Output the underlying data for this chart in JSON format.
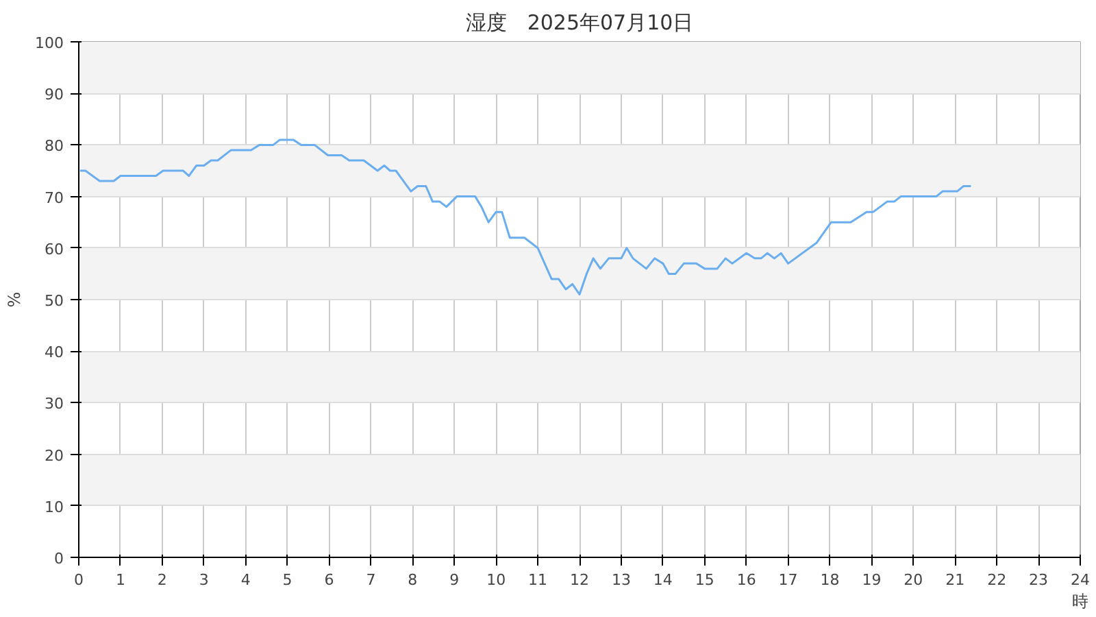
{
  "chart_data": {
    "type": "line",
    "title": "湿度　2025年07月10日",
    "xlabel": "時",
    "ylabel": "%",
    "xlim": [
      0,
      24
    ],
    "ylim": [
      0,
      100
    ],
    "xticks": [
      0,
      1,
      2,
      3,
      4,
      5,
      6,
      7,
      8,
      9,
      10,
      11,
      12,
      13,
      14,
      15,
      16,
      17,
      18,
      19,
      20,
      21,
      22,
      23,
      24
    ],
    "yticks": [
      0,
      10,
      20,
      30,
      40,
      50,
      60,
      70,
      80,
      90,
      100
    ],
    "grid": true,
    "marker": "none",
    "line_style": "solid",
    "series": [
      {
        "color": "#6aaef0",
        "x": [
          0.03,
          0.16,
          0.5,
          0.84,
          1.0,
          1.85,
          2.02,
          2.5,
          2.64,
          2.82,
          3.0,
          3.17,
          3.33,
          3.65,
          4.13,
          4.33,
          4.66,
          4.82,
          5.14,
          5.33,
          5.65,
          5.97,
          6.3,
          6.48,
          6.83,
          7.16,
          7.32,
          7.46,
          7.6,
          7.96,
          8.12,
          8.32,
          8.48,
          8.65,
          8.81,
          9.06,
          9.5,
          9.65,
          9.82,
          10.0,
          10.14,
          10.33,
          10.68,
          11.0,
          11.33,
          11.5,
          11.67,
          11.83,
          12.0,
          12.17,
          12.33,
          12.5,
          12.7,
          13.0,
          13.13,
          13.28,
          13.6,
          13.8,
          14.0,
          14.14,
          14.3,
          14.5,
          14.8,
          15.0,
          15.3,
          15.5,
          15.66,
          16.0,
          16.2,
          16.35,
          16.5,
          16.67,
          16.83,
          17.0,
          17.68,
          18.03,
          18.5,
          18.88,
          19.04,
          19.37,
          19.54,
          19.7,
          20.55,
          20.7,
          21.05,
          21.2,
          21.38
        ],
        "values": [
          75,
          75,
          73,
          73,
          74,
          74,
          75,
          75,
          74,
          76,
          76,
          77,
          77,
          79,
          79,
          80,
          80,
          81,
          81,
          80,
          80,
          78,
          78,
          77,
          77,
          75,
          76,
          75,
          75,
          71,
          72,
          72,
          69,
          69,
          68,
          70,
          70,
          68,
          65,
          67,
          67,
          62,
          62,
          60,
          54,
          54,
          52,
          53,
          51,
          55,
          58,
          56,
          58,
          58,
          60,
          58,
          56,
          58,
          57,
          55,
          55,
          57,
          57,
          56,
          56,
          58,
          57,
          59,
          58,
          58,
          59,
          58,
          59,
          57,
          61,
          65,
          65,
          67,
          67,
          69,
          69,
          70,
          70,
          71,
          71,
          72,
          72
        ]
      }
    ]
  }
}
